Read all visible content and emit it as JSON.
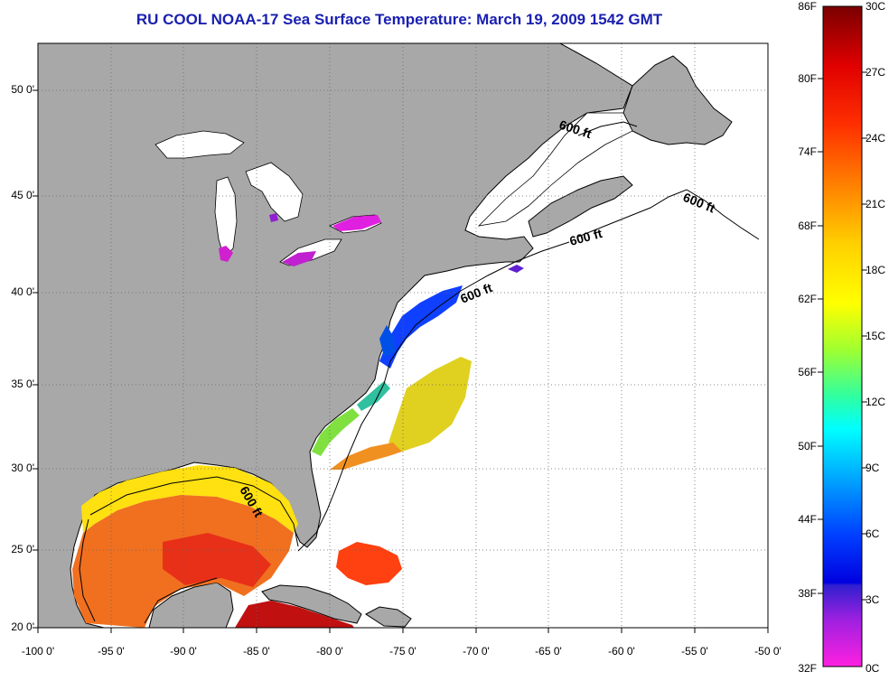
{
  "title": "RU COOL  NOAA-17  Sea Surface Temperature:  March 19, 2009 1542 GMT",
  "lat_labels": [
    "50 0'",
    "45 0'",
    "40 0'",
    "35 0'",
    "30 0'",
    "25 0'",
    "20 0'"
  ],
  "lon_labels": [
    "-100 0'",
    "-95 0'",
    "-90 0'",
    "-85 0'",
    "-80 0'",
    "-75 0'",
    "-70 0'",
    "-65 0'",
    "-60 0'",
    "-55 0'",
    "-50 0'"
  ],
  "contour_labels": [
    "600 ft",
    "600 ft",
    "600 ft",
    "600 ft",
    "600 ft"
  ],
  "colorbar": {
    "fahrenheit": [
      "86F",
      "80F",
      "74F",
      "68F",
      "62F",
      "56F",
      "50F",
      "44F",
      "38F",
      "32F"
    ],
    "celsius": [
      "30C",
      "27C",
      "24C",
      "21C",
      "18C",
      "15C",
      "12C",
      "9C",
      "6C",
      "3C",
      "0C"
    ]
  },
  "colors": {
    "land": "#a8a8a8",
    "ocean": "#ffffff",
    "title": "#1a20b0"
  }
}
